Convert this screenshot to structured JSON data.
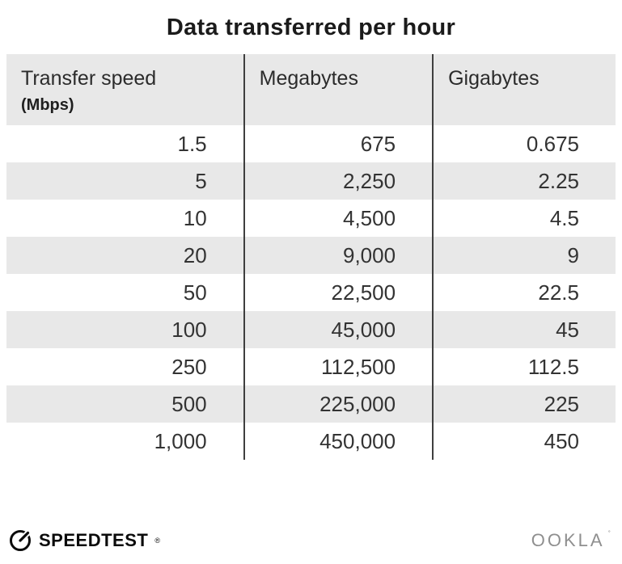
{
  "title": "Data transferred per hour",
  "table": {
    "columns": [
      {
        "label": "Transfer speed",
        "sublabel": "(Mbps)"
      },
      {
        "label": "Megabytes",
        "sublabel": ""
      },
      {
        "label": "Gigabytes",
        "sublabel": ""
      }
    ],
    "rows": [
      [
        "1.5",
        "675",
        "0.675"
      ],
      [
        "5",
        "2,250",
        "2.25"
      ],
      [
        "10",
        "4,500",
        "4.5"
      ],
      [
        "20",
        "9,000",
        "9"
      ],
      [
        "50",
        "22,500",
        "22.5"
      ],
      [
        "100",
        "45,000",
        "45"
      ],
      [
        "250",
        "112,500",
        "112.5"
      ],
      [
        "500",
        "225,000",
        "225"
      ],
      [
        "1,000",
        "450,000",
        "450"
      ]
    ]
  },
  "footer": {
    "speedtest_label": "SPEEDTEST",
    "speedtest_mark": "®",
    "ookla_label": "OOKLA",
    "ookla_mark": "˚"
  },
  "colors": {
    "header_bg": "#e8e8e8",
    "row_alt_bg": "#e8e8e8",
    "divider": "#3f3f3f",
    "title_text": "#1b1b1b",
    "cell_text": "#333333",
    "ookla_gray": "#8f8f8f"
  },
  "chart_data": {
    "type": "table",
    "title": "Data transferred per hour",
    "columns": [
      "Transfer speed (Mbps)",
      "Megabytes",
      "Gigabytes"
    ],
    "rows": [
      [
        1.5,
        675,
        0.675
      ],
      [
        5,
        2250,
        2.25
      ],
      [
        10,
        4500,
        4.5
      ],
      [
        20,
        9000,
        9
      ],
      [
        50,
        22500,
        22.5
      ],
      [
        100,
        45000,
        45
      ],
      [
        250,
        112500,
        112.5
      ],
      [
        500,
        225000,
        225
      ],
      [
        1000,
        450000,
        450
      ]
    ]
  }
}
